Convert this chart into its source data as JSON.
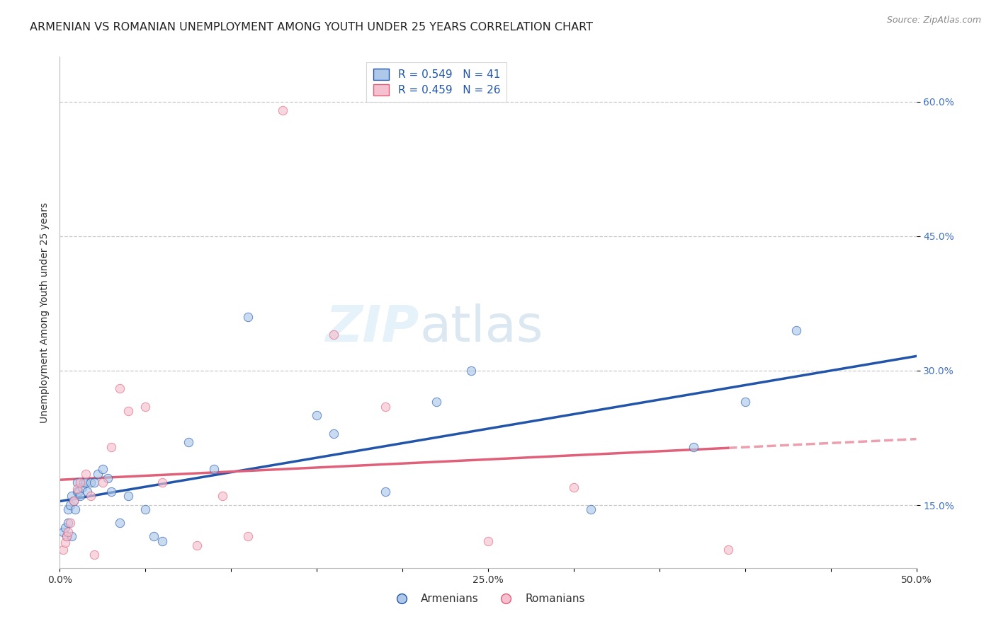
{
  "title": "ARMENIAN VS ROMANIAN UNEMPLOYMENT AMONG YOUTH UNDER 25 YEARS CORRELATION CHART",
  "source": "Source: ZipAtlas.com",
  "ylabel": "Unemployment Among Youth under 25 years",
  "xlim": [
    0.0,
    0.5
  ],
  "ylim": [
    0.08,
    0.65
  ],
  "xtick_positions": [
    0.0,
    0.05,
    0.1,
    0.15,
    0.2,
    0.25,
    0.3,
    0.35,
    0.4,
    0.45,
    0.5
  ],
  "xticklabels": [
    "0.0%",
    "",
    "",
    "",
    "",
    "25.0%",
    "",
    "",
    "",
    "",
    "50.0%"
  ],
  "ytick_positions": [
    0.15,
    0.3,
    0.45,
    0.6
  ],
  "yticklabels": [
    "15.0%",
    "30.0%",
    "45.0%",
    "60.0%"
  ],
  "armenians_x": [
    0.002,
    0.003,
    0.004,
    0.005,
    0.005,
    0.006,
    0.007,
    0.007,
    0.008,
    0.009,
    0.01,
    0.01,
    0.011,
    0.012,
    0.013,
    0.014,
    0.015,
    0.016,
    0.018,
    0.02,
    0.022,
    0.025,
    0.028,
    0.03,
    0.035,
    0.04,
    0.05,
    0.055,
    0.06,
    0.075,
    0.09,
    0.11,
    0.15,
    0.16,
    0.19,
    0.22,
    0.24,
    0.31,
    0.37,
    0.4,
    0.43
  ],
  "armenians_y": [
    0.12,
    0.125,
    0.115,
    0.13,
    0.145,
    0.15,
    0.16,
    0.115,
    0.155,
    0.145,
    0.165,
    0.175,
    0.165,
    0.16,
    0.17,
    0.175,
    0.175,
    0.165,
    0.175,
    0.175,
    0.185,
    0.19,
    0.18,
    0.165,
    0.13,
    0.16,
    0.145,
    0.115,
    0.11,
    0.22,
    0.19,
    0.36,
    0.25,
    0.23,
    0.165,
    0.265,
    0.3,
    0.145,
    0.215,
    0.265,
    0.345
  ],
  "romanians_x": [
    0.002,
    0.003,
    0.004,
    0.005,
    0.006,
    0.008,
    0.01,
    0.012,
    0.015,
    0.018,
    0.02,
    0.025,
    0.03,
    0.035,
    0.04,
    0.05,
    0.06,
    0.08,
    0.095,
    0.11,
    0.13,
    0.16,
    0.19,
    0.25,
    0.3,
    0.39
  ],
  "romanians_y": [
    0.1,
    0.108,
    0.115,
    0.12,
    0.13,
    0.155,
    0.168,
    0.175,
    0.185,
    0.16,
    0.095,
    0.175,
    0.215,
    0.28,
    0.255,
    0.26,
    0.175,
    0.105,
    0.16,
    0.115,
    0.59,
    0.34,
    0.26,
    0.11,
    0.17,
    0.1
  ],
  "R_armenians": 0.549,
  "N_armenians": 41,
  "R_romanians": 0.459,
  "N_romanians": 26,
  "armenian_scatter_color": "#adc8e8",
  "armenian_line_color": "#2255aa",
  "romanian_scatter_color": "#f5c0cf",
  "romanian_line_color": "#e0607a",
  "watermark_zip": "ZIP",
  "watermark_atlas": "atlas",
  "background_color": "#ffffff",
  "grid_color": "#c8c8c8",
  "title_fontsize": 11.5,
  "axis_label_fontsize": 10,
  "tick_fontsize": 10,
  "scatter_size": 80,
  "scatter_alpha": 0.65,
  "line_width": 2.5,
  "tick_color": "#4472c4",
  "legend_label_color": "#2255aa"
}
